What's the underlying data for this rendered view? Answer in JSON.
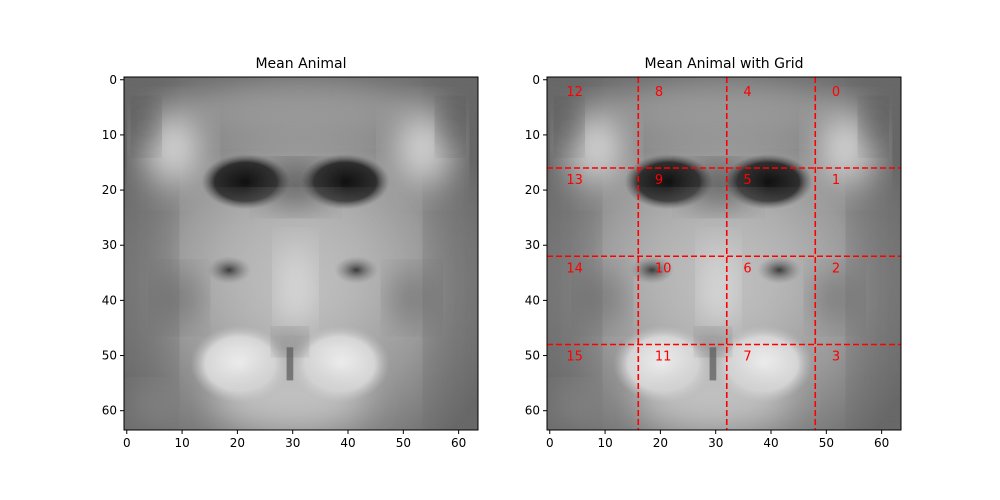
{
  "panels": [
    {
      "title": "Mean Animal",
      "kind": "grayscale-image",
      "image_size": [
        64,
        64
      ],
      "xlim": [
        -0.5,
        63.5
      ],
      "ylim": [
        63.5,
        -0.5
      ],
      "x_ticks": [
        0,
        10,
        20,
        30,
        40,
        50,
        60
      ],
      "y_ticks": [
        0,
        10,
        20,
        30,
        40,
        50,
        60
      ],
      "has_grid_overlay": false
    },
    {
      "title": "Mean Animal with Grid",
      "kind": "grayscale-image",
      "image_size": [
        64,
        64
      ],
      "xlim": [
        -0.5,
        63.5
      ],
      "ylim": [
        63.5,
        -0.5
      ],
      "x_ticks": [
        0,
        10,
        20,
        30,
        40,
        50,
        60
      ],
      "y_ticks": [
        0,
        10,
        20,
        30,
        40,
        50,
        60
      ],
      "has_grid_overlay": true,
      "grid": {
        "line_color": "#ff0000",
        "line_style": "dashed",
        "vertical_lines": [
          16,
          32,
          48
        ],
        "horizontal_lines": [
          16,
          32,
          48
        ],
        "cell_labels": [
          {
            "label": "12",
            "x": 4,
            "y": 2
          },
          {
            "label": "8",
            "x": 20,
            "y": 2
          },
          {
            "label": "4",
            "x": 36,
            "y": 2
          },
          {
            "label": "0",
            "x": 52,
            "y": 2
          },
          {
            "label": "13",
            "x": 4,
            "y": 18
          },
          {
            "label": "9",
            "x": 20,
            "y": 18
          },
          {
            "label": "5",
            "x": 36,
            "y": 18
          },
          {
            "label": "1",
            "x": 52,
            "y": 18
          },
          {
            "label": "14",
            "x": 4,
            "y": 34
          },
          {
            "label": "10",
            "x": 20,
            "y": 34
          },
          {
            "label": "6",
            "x": 36,
            "y": 34
          },
          {
            "label": "2",
            "x": 52,
            "y": 34
          },
          {
            "label": "15",
            "x": 4,
            "y": 50
          },
          {
            "label": "11",
            "x": 20,
            "y": 50
          },
          {
            "label": "7",
            "x": 36,
            "y": 50
          },
          {
            "label": "3",
            "x": 52,
            "y": 50
          }
        ]
      }
    }
  ]
}
